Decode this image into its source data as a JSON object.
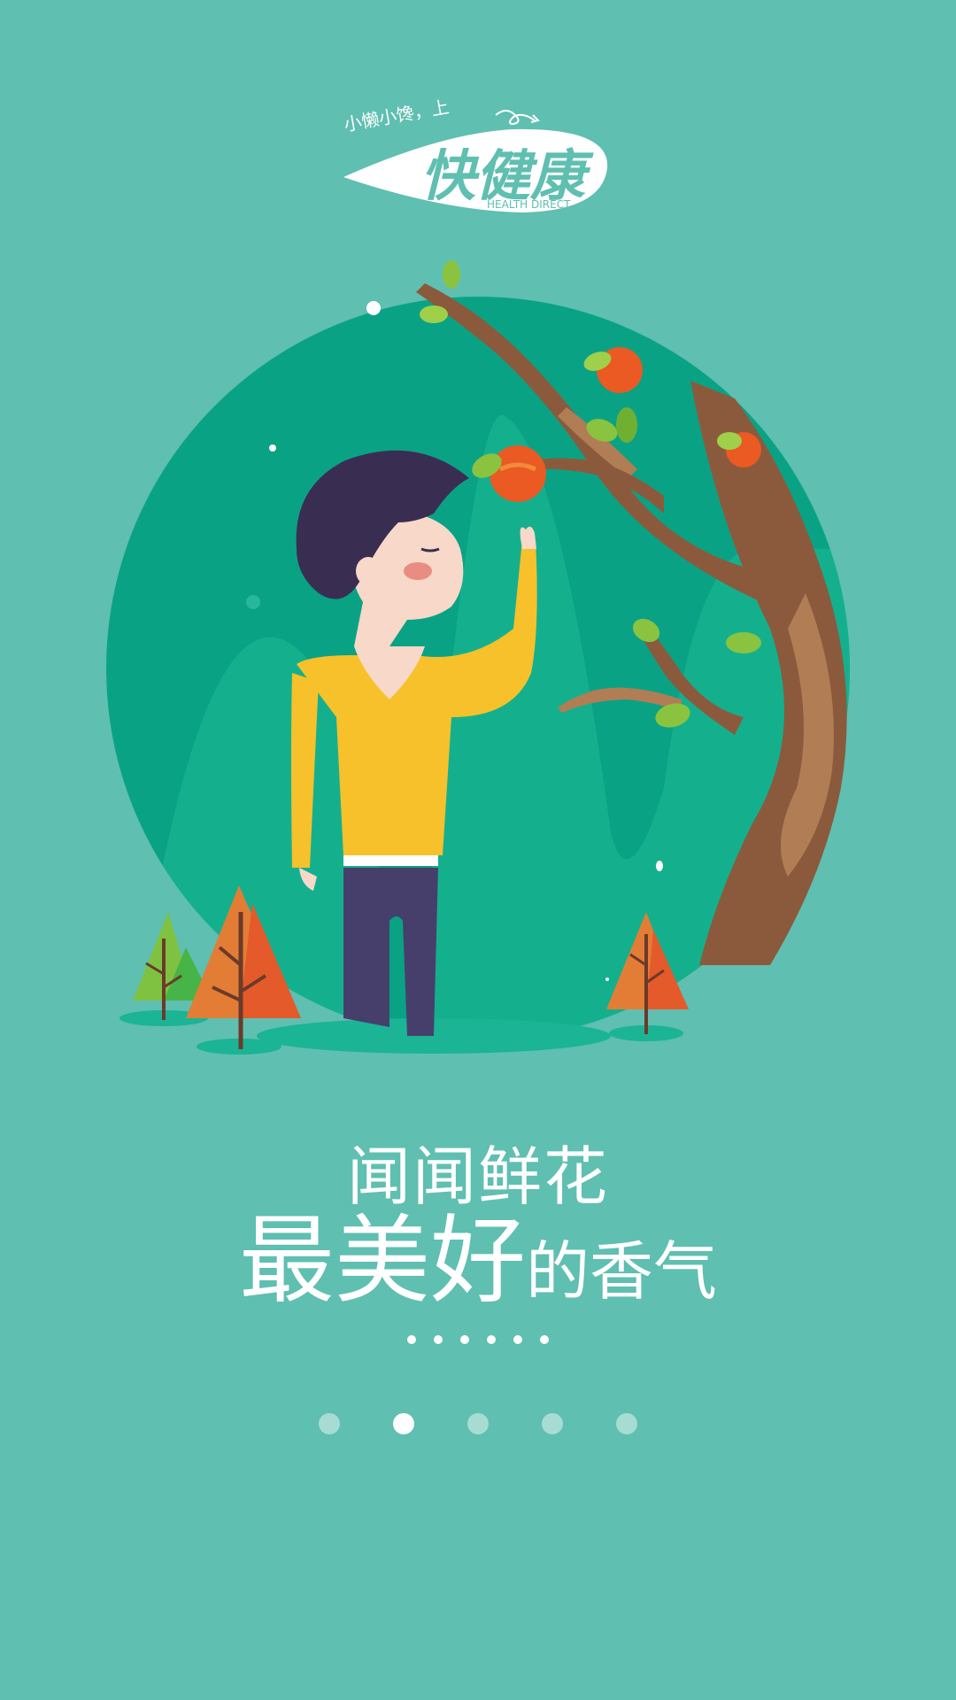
{
  "logo": {
    "slogan": "小懒小馋，上",
    "brand": "快健康",
    "sub": "HEALTH DIRECT"
  },
  "headline": {
    "line1": "闻闻鲜花",
    "line2_big": "最美好",
    "line2_small": "的香气"
  },
  "pager": {
    "count": 5,
    "active_index": 1
  },
  "colors": {
    "background": "#5fbfb1",
    "circle": "#0aa285",
    "hill": "#14b08e",
    "shirt": "#f6c12b",
    "pants": "#473f6b",
    "hair": "#3a2d52",
    "trunk": "#8b5a3c",
    "fruit": "#ea5a22",
    "leaf": "#8ac33f",
    "white": "#ffffff"
  }
}
